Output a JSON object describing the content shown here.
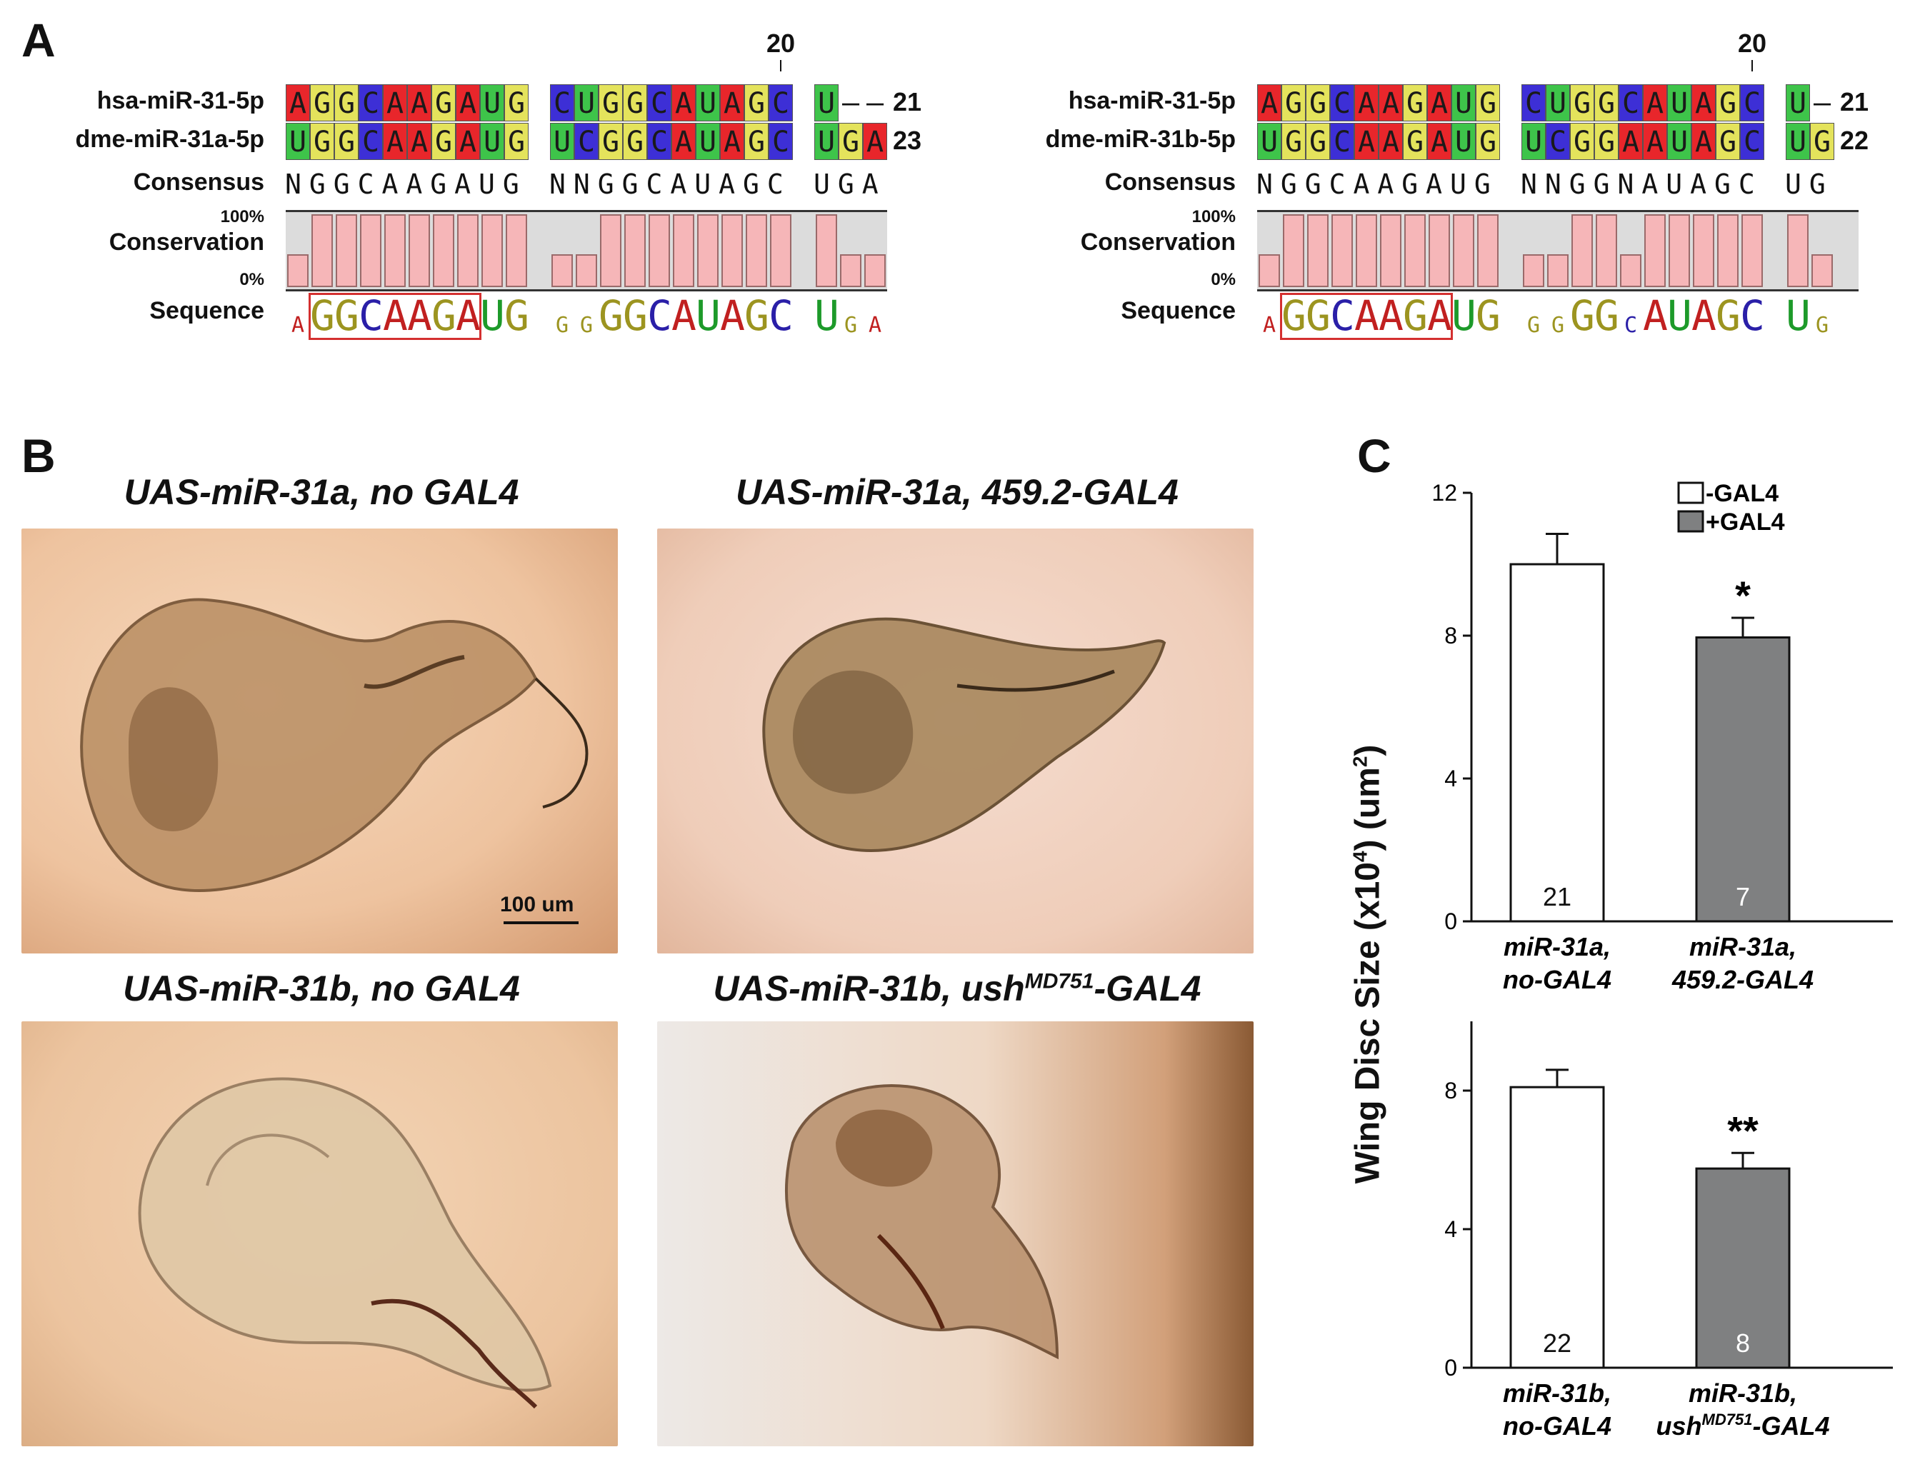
{
  "panels": {
    "a": "A",
    "b": "B",
    "c": "C"
  },
  "alignment_left": {
    "position_marker": "20",
    "row1_name": "hsa-miR-31-5p",
    "row1_blocks": [
      [
        "A",
        "G",
        "G",
        "C",
        "A",
        "A",
        "G",
        "A",
        "U",
        "G"
      ],
      [
        "C",
        "U",
        "G",
        "G",
        "C",
        "A",
        "U",
        "A",
        "G",
        "C"
      ],
      [
        "U",
        "-",
        "-"
      ]
    ],
    "row1_length": "21",
    "row2_name": "dme-miR-31a-5p",
    "row2_blocks": [
      [
        "U",
        "G",
        "G",
        "C",
        "A",
        "A",
        "G",
        "A",
        "U",
        "G"
      ],
      [
        "U",
        "C",
        "G",
        "G",
        "C",
        "A",
        "U",
        "A",
        "G",
        "C"
      ],
      [
        "U",
        "G",
        "A"
      ]
    ],
    "row2_length": "23",
    "consensus_label": "Consensus",
    "consensus_blocks": [
      "NGGCAAGAUG",
      "NNGGCAUAGC",
      "UGA"
    ],
    "conservation_label": "Conservation",
    "pct_top": "100%",
    "pct_bottom": "0%",
    "conservation_values": [
      [
        0.45,
        1,
        1,
        1,
        1,
        1,
        1,
        1,
        1,
        1
      ],
      [
        0.45,
        0.45,
        1,
        1,
        1,
        1,
        1,
        1,
        1,
        1
      ],
      [
        1,
        0.45,
        0.45
      ]
    ],
    "sequence_label": "Sequence",
    "logo_blocks": [
      [
        "A",
        "G",
        "G",
        "C",
        "A",
        "A",
        "G",
        "A",
        "U",
        "G"
      ],
      [
        "G",
        "G",
        "G",
        "G",
        "C",
        "A",
        "U",
        "A",
        "G",
        "C"
      ],
      [
        "U",
        "G",
        "A"
      ]
    ]
  },
  "alignment_right": {
    "position_marker": "20",
    "row1_name": "hsa-miR-31-5p",
    "row1_blocks": [
      [
        "A",
        "G",
        "G",
        "C",
        "A",
        "A",
        "G",
        "A",
        "U",
        "G"
      ],
      [
        "C",
        "U",
        "G",
        "G",
        "C",
        "A",
        "U",
        "A",
        "G",
        "C"
      ],
      [
        "U",
        "-"
      ]
    ],
    "row1_length": "21",
    "row2_name": "dme-miR-31b-5p",
    "row2_blocks": [
      [
        "U",
        "G",
        "G",
        "C",
        "A",
        "A",
        "G",
        "A",
        "U",
        "G"
      ],
      [
        "U",
        "C",
        "G",
        "G",
        "A",
        "A",
        "U",
        "A",
        "G",
        "C"
      ],
      [
        "U",
        "G"
      ]
    ],
    "row2_length": "22",
    "consensus_label": "Consensus",
    "consensus_blocks": [
      "NGGCAAGAUG",
      "NNGGNAUAGC",
      "UG"
    ],
    "conservation_label": "Conservation",
    "pct_top": "100%",
    "pct_bottom": "0%",
    "conservation_values": [
      [
        0.45,
        1,
        1,
        1,
        1,
        1,
        1,
        1,
        1,
        1
      ],
      [
        0.45,
        0.45,
        1,
        1,
        0.45,
        1,
        1,
        1,
        1,
        1
      ],
      [
        1,
        0.45
      ]
    ],
    "sequence_label": "Sequence",
    "logo_blocks": [
      [
        "A",
        "G",
        "G",
        "C",
        "A",
        "A",
        "G",
        "A",
        "U",
        "G"
      ],
      [
        "G",
        "G",
        "G",
        "G",
        "C",
        "A",
        "U",
        "A",
        "G",
        "C"
      ],
      [
        "U",
        "G"
      ]
    ]
  },
  "images": {
    "tl_title": "UAS-miR-31a, no GAL4",
    "tr_title": "UAS-miR-31a, 459.2-GAL4",
    "bl_title": "UAS-miR-31b, no GAL4",
    "br_title_main": "UAS-miR-31b, ush",
    "br_title_sup": "MD751",
    "br_title_end": "-GAL4",
    "scale_bar": "100 um"
  },
  "chart_data": [
    {
      "type": "bar",
      "categories": [
        "miR-31a, no-GAL4",
        "miR-31a, 459.2-GAL4"
      ],
      "category_lines": [
        [
          "miR-31a,",
          "no-GAL4"
        ],
        [
          "miR-31a,",
          "459.2-GAL4"
        ]
      ],
      "values": [
        10.0,
        7.95
      ],
      "errors": [
        0.85,
        0.55
      ],
      "n_labels": [
        "21",
        "7"
      ],
      "significance": [
        "",
        "*"
      ],
      "bar_colors": [
        "#ffffff",
        "#7f8081"
      ],
      "ylim": [
        0,
        12
      ],
      "yticks": [
        "0",
        "4",
        "8",
        "12"
      ],
      "legend": [
        "-GAL4",
        "+GAL4"
      ]
    },
    {
      "type": "bar",
      "categories": [
        "miR-31b, no-GAL4",
        "miR-31b, ushMD751-GAL4"
      ],
      "category_lines": [
        [
          "miR-31b,",
          "no-GAL4"
        ],
        [
          "miR-31b,",
          "ush",
          "MD751",
          "-GAL4"
        ]
      ],
      "values": [
        8.1,
        5.75
      ],
      "errors": [
        0.5,
        0.45
      ],
      "n_labels": [
        "22",
        "8"
      ],
      "significance": [
        "",
        "**"
      ],
      "bar_colors": [
        "#ffffff",
        "#7f8081"
      ],
      "ylim": [
        0,
        10
      ],
      "yticks": [
        "0",
        "4",
        "8"
      ]
    }
  ],
  "ylabel_main": "Wing Disc Size (x10",
  "ylabel_sup": "4",
  "ylabel_mid": ") (um",
  "ylabel_sup2": "2",
  "ylabel_end": ")"
}
